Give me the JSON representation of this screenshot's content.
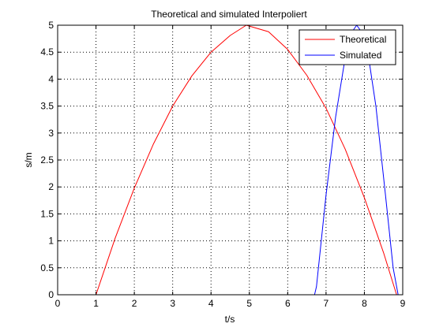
{
  "chart_data": {
    "type": "line",
    "title": "Theoretical and simulated Interpoliert",
    "xlabel": "t/s",
    "ylabel": "s/m",
    "xlim": [
      0,
      9
    ],
    "ylim": [
      0,
      5
    ],
    "xticks": [
      "0",
      "1",
      "2",
      "3",
      "4",
      "5",
      "6",
      "7",
      "8",
      "9"
    ],
    "yticks": [
      "0",
      "0.5",
      "1",
      "1.5",
      "2",
      "2.5",
      "3",
      "3.5",
      "4",
      "4.5",
      "5"
    ],
    "grid": true,
    "legend_position": "top-right",
    "series": [
      {
        "name": "Theoretical",
        "color": "#ff0000",
        "x": [
          1.0,
          1.5,
          2.0,
          2.5,
          3.0,
          3.5,
          4.0,
          4.5,
          4.92,
          5.5,
          6.0,
          6.5,
          7.0,
          7.5,
          8.0,
          8.5,
          8.84
        ],
        "y": [
          0.0,
          1.05,
          1.98,
          2.8,
          3.5,
          4.06,
          4.5,
          4.81,
          5.0,
          4.88,
          4.55,
          4.07,
          3.46,
          2.7,
          1.8,
          0.78,
          0.0
        ]
      },
      {
        "name": "Simulated",
        "color": "#0000ff",
        "x": [
          6.5,
          6.6,
          6.7,
          6.75,
          7.0,
          7.25,
          7.5,
          7.65,
          7.8,
          7.95,
          8.1,
          8.3,
          8.55,
          8.75,
          8.88
        ],
        "y": [
          0.0,
          0.0,
          0.0,
          0.15,
          1.85,
          3.3,
          4.4,
          4.85,
          5.0,
          4.85,
          4.45,
          3.5,
          1.85,
          0.5,
          0.0
        ]
      }
    ]
  }
}
